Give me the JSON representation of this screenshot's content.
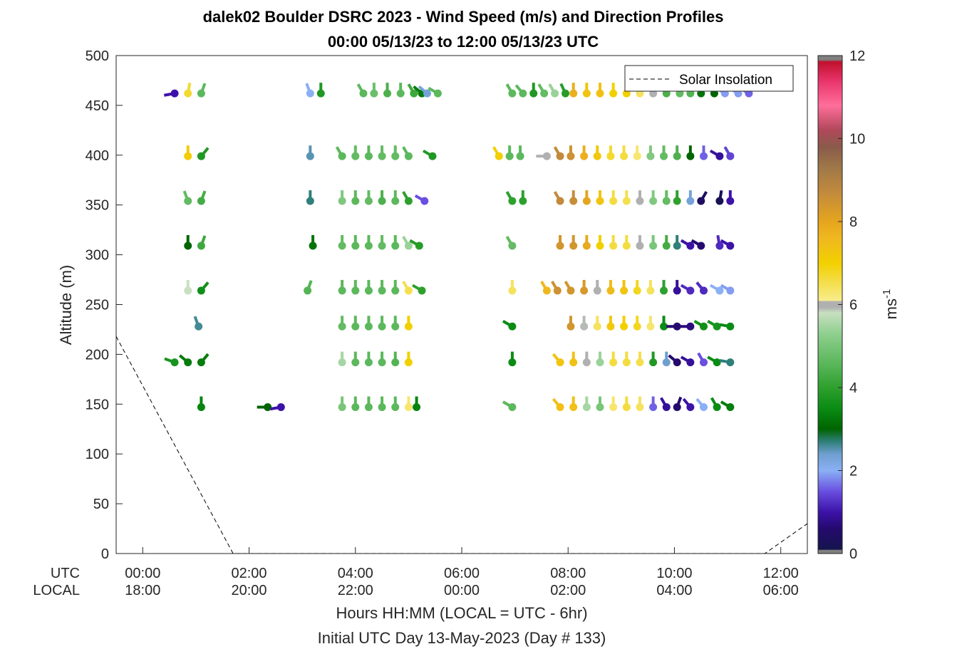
{
  "chart_data": {
    "type": "scatter",
    "title": "dalek02 Boulder DSRC 2023 - Wind Speed (m/s) and Direction Profiles",
    "subtitle": "00:00 05/13/23 to 12:00 05/13/23  UTC",
    "ylabel": "Altitude (m)",
    "xlabel": "Hours HH:MM  (LOCAL = UTC - 6hr)",
    "xlabel2": "Initial UTC Day 13-May-2023 (Day # 133)",
    "xlim": [
      -0.5,
      12.5
    ],
    "ylim": [
      0,
      500
    ],
    "x_row_labels": [
      "UTC",
      "LOCAL"
    ],
    "x_ticks": [
      {
        "hour": 0,
        "utc": "00:00",
        "local": "18:00"
      },
      {
        "hour": 2,
        "utc": "02:00",
        "local": "20:00"
      },
      {
        "hour": 4,
        "utc": "04:00",
        "local": "22:00"
      },
      {
        "hour": 6,
        "utc": "06:00",
        "local": "00:00"
      },
      {
        "hour": 8,
        "utc": "08:00",
        "local": "02:00"
      },
      {
        "hour": 10,
        "utc": "10:00",
        "local": "04:00"
      },
      {
        "hour": 12,
        "utc": "12:00",
        "local": "06:00"
      }
    ],
    "y_ticks": [
      0,
      50,
      100,
      150,
      200,
      250,
      300,
      350,
      400,
      450,
      500
    ],
    "legend": {
      "entry": "Solar Insolation",
      "location": "top-right"
    },
    "solar_insolation": [
      [
        -0.5,
        218
      ],
      [
        1.7,
        0
      ],
      [
        11.7,
        0
      ],
      [
        12.5,
        30
      ]
    ],
    "colorbar": {
      "label": "ms",
      "label_superscript": "-1",
      "min": 0,
      "max": 12,
      "ticks": [
        0,
        2,
        4,
        6,
        8,
        10,
        12
      ],
      "stops": [
        {
          "v": 0.0,
          "c": "#808080"
        },
        {
          "v": 0.08,
          "c": "#808080"
        },
        {
          "v": 0.1,
          "c": "#15154d"
        },
        {
          "v": 0.6,
          "c": "#250a6e"
        },
        {
          "v": 1.0,
          "c": "#3c12a8"
        },
        {
          "v": 1.5,
          "c": "#6a4fe0"
        },
        {
          "v": 2.0,
          "c": "#8ab0f5"
        },
        {
          "v": 2.4,
          "c": "#6e9fcf"
        },
        {
          "v": 2.7,
          "c": "#2f7f7a"
        },
        {
          "v": 3.0,
          "c": "#006400"
        },
        {
          "v": 3.5,
          "c": "#0a8c14"
        },
        {
          "v": 4.0,
          "c": "#2ea02e"
        },
        {
          "v": 4.6,
          "c": "#5cb85c"
        },
        {
          "v": 5.3,
          "c": "#8fcf8f"
        },
        {
          "v": 5.8,
          "c": "#c8e0c0"
        },
        {
          "v": 5.93,
          "c": "#b0b0b0"
        },
        {
          "v": 6.07,
          "c": "#b0b0b0"
        },
        {
          "v": 6.1,
          "c": "#f8ec8c"
        },
        {
          "v": 6.6,
          "c": "#f3dc40"
        },
        {
          "v": 7.0,
          "c": "#f2d000"
        },
        {
          "v": 7.6,
          "c": "#f0b820"
        },
        {
          "v": 8.0,
          "c": "#e5a51e"
        },
        {
          "v": 8.7,
          "c": "#c28a3c"
        },
        {
          "v": 9.3,
          "c": "#9e7848"
        },
        {
          "v": 9.8,
          "c": "#8a5a4a"
        },
        {
          "v": 10.2,
          "c": "#b0485a"
        },
        {
          "v": 10.8,
          "c": "#ff6e9a"
        },
        {
          "v": 11.4,
          "c": "#e8336a"
        },
        {
          "v": 11.85,
          "c": "#c0102c"
        },
        {
          "v": 11.9,
          "c": "#808080"
        },
        {
          "v": 12.0,
          "c": "#808080"
        }
      ]
    },
    "series": [
      {
        "alt": 462,
        "points": [
          [
            0.6,
            1.0,
            260
          ],
          [
            0.85,
            6.7,
            10
          ],
          [
            1.1,
            4.6,
            20
          ],
          [
            3.15,
            2.0,
            340
          ],
          [
            3.35,
            3.8,
            0
          ],
          [
            4.15,
            4.6,
            330
          ],
          [
            4.35,
            4.8,
            0
          ],
          [
            4.6,
            4.4,
            0
          ],
          [
            4.85,
            4.6,
            0
          ],
          [
            5.1,
            4.2,
            330
          ],
          [
            5.25,
            3.3,
            310
          ],
          [
            5.35,
            2.3,
            310
          ],
          [
            5.55,
            4.6,
            300
          ],
          [
            6.95,
            4.6,
            330
          ],
          [
            7.15,
            4.6,
            320
          ],
          [
            7.35,
            3.8,
            0
          ],
          [
            7.55,
            4.7,
            330
          ],
          [
            7.75,
            5.4,
            330
          ],
          [
            7.95,
            3.9,
            335
          ],
          [
            8.1,
            7.8,
            0
          ],
          [
            8.35,
            7.3,
            0
          ],
          [
            8.6,
            7.4,
            0
          ],
          [
            8.85,
            7.0,
            0
          ],
          [
            9.1,
            7.0,
            0
          ],
          [
            9.35,
            6.4,
            0
          ],
          [
            9.6,
            6.0,
            0
          ],
          [
            9.85,
            4.4,
            0
          ],
          [
            10.1,
            4.7,
            0
          ],
          [
            10.3,
            4.5,
            0
          ],
          [
            10.5,
            3.2,
            0
          ],
          [
            10.75,
            3.0,
            0
          ],
          [
            10.95,
            1.9,
            300
          ],
          [
            11.2,
            1.9,
            300
          ],
          [
            11.4,
            1.6,
            300
          ]
        ]
      },
      {
        "alt": 399,
        "points": [
          [
            0.85,
            7.1,
            0
          ],
          [
            1.1,
            3.8,
            40
          ],
          [
            3.15,
            2.5,
            0
          ],
          [
            3.75,
            4.6,
            330
          ],
          [
            4.0,
            4.7,
            0
          ],
          [
            4.25,
            4.6,
            0
          ],
          [
            4.5,
            4.7,
            0
          ],
          [
            4.75,
            4.7,
            0
          ],
          [
            5.0,
            4.6,
            330
          ],
          [
            5.45,
            3.8,
            300
          ],
          [
            6.7,
            7.0,
            330
          ],
          [
            6.9,
            4.6,
            0
          ],
          [
            7.1,
            4.6,
            0
          ],
          [
            7.6,
            6.0,
            270
          ],
          [
            7.85,
            8.7,
            330
          ],
          [
            8.05,
            8.5,
            0
          ],
          [
            8.3,
            7.8,
            0
          ],
          [
            8.55,
            7.2,
            0
          ],
          [
            8.8,
            6.7,
            0
          ],
          [
            9.05,
            6.6,
            0
          ],
          [
            9.3,
            6.3,
            0
          ],
          [
            9.55,
            5.1,
            0
          ],
          [
            9.8,
            4.7,
            0
          ],
          [
            10.05,
            4.4,
            0
          ],
          [
            10.3,
            3.0,
            0
          ],
          [
            10.55,
            1.6,
            0
          ],
          [
            10.85,
            0.9,
            300
          ],
          [
            11.05,
            1.4,
            330
          ]
        ]
      },
      {
        "alt": 354,
        "points": [
          [
            0.85,
            4.7,
            340
          ],
          [
            1.1,
            4.3,
            20
          ],
          [
            3.15,
            2.7,
            0
          ],
          [
            3.75,
            5.1,
            0
          ],
          [
            4.0,
            4.6,
            0
          ],
          [
            4.25,
            4.7,
            0
          ],
          [
            4.5,
            4.4,
            0
          ],
          [
            4.75,
            4.6,
            0
          ],
          [
            5.0,
            4.0,
            330
          ],
          [
            5.3,
            1.5,
            300
          ],
          [
            6.95,
            4.0,
            330
          ],
          [
            7.15,
            4.0,
            0
          ],
          [
            7.85,
            8.7,
            330
          ],
          [
            8.1,
            8.6,
            0
          ],
          [
            8.35,
            8.0,
            0
          ],
          [
            8.6,
            7.3,
            0
          ],
          [
            8.85,
            6.6,
            0
          ],
          [
            9.1,
            6.5,
            0
          ],
          [
            9.35,
            6.0,
            0
          ],
          [
            9.6,
            5.1,
            0
          ],
          [
            9.85,
            4.7,
            0
          ],
          [
            10.05,
            4.0,
            0
          ],
          [
            10.3,
            2.3,
            0
          ],
          [
            10.5,
            0.4,
            30
          ],
          [
            10.85,
            0.2,
            10
          ],
          [
            11.05,
            1.0,
            0
          ]
        ]
      },
      {
        "alt": 309,
        "points": [
          [
            0.85,
            3.0,
            0
          ],
          [
            1.1,
            4.2,
            20
          ],
          [
            3.2,
            3.2,
            0
          ],
          [
            3.75,
            4.7,
            0
          ],
          [
            4.0,
            4.6,
            0
          ],
          [
            4.25,
            4.6,
            0
          ],
          [
            4.5,
            4.7,
            0
          ],
          [
            4.75,
            4.6,
            0
          ],
          [
            5.0,
            5.4,
            330
          ],
          [
            5.2,
            3.9,
            300
          ],
          [
            6.95,
            4.7,
            330
          ],
          [
            7.85,
            8.4,
            0
          ],
          [
            8.1,
            8.4,
            0
          ],
          [
            8.35,
            7.9,
            0
          ],
          [
            8.6,
            7.0,
            0
          ],
          [
            8.85,
            6.6,
            0
          ],
          [
            9.1,
            6.6,
            0
          ],
          [
            9.35,
            6.0,
            0
          ],
          [
            9.6,
            5.0,
            0
          ],
          [
            9.85,
            4.3,
            0
          ],
          [
            10.05,
            2.7,
            0
          ],
          [
            10.3,
            1.0,
            300
          ],
          [
            10.5,
            0.6,
            300
          ],
          [
            10.85,
            1.2,
            350
          ],
          [
            11.05,
            1.0,
            300
          ]
        ]
      },
      {
        "alt": 264,
        "points": [
          [
            0.85,
            5.8,
            0
          ],
          [
            1.1,
            3.6,
            40
          ],
          [
            3.1,
            4.5,
            20
          ],
          [
            3.75,
            4.6,
            0
          ],
          [
            4.0,
            4.6,
            0
          ],
          [
            4.25,
            4.6,
            0
          ],
          [
            4.5,
            4.6,
            0
          ],
          [
            4.75,
            4.6,
            0
          ],
          [
            5.0,
            6.5,
            330
          ],
          [
            5.25,
            4.0,
            300
          ],
          [
            6.95,
            6.4,
            0
          ],
          [
            7.6,
            7.6,
            330
          ],
          [
            7.8,
            8.5,
            330
          ],
          [
            8.05,
            8.4,
            330
          ],
          [
            8.3,
            8.3,
            0
          ],
          [
            8.55,
            6.0,
            0
          ],
          [
            8.8,
            7.5,
            0
          ],
          [
            9.05,
            7.3,
            0
          ],
          [
            9.3,
            6.8,
            0
          ],
          [
            9.55,
            6.4,
            0
          ],
          [
            9.8,
            4.0,
            0
          ],
          [
            10.05,
            0.9,
            0
          ],
          [
            10.3,
            1.2,
            300
          ],
          [
            10.55,
            1.2,
            320
          ],
          [
            10.85,
            2.0,
            300
          ],
          [
            11.05,
            1.9,
            300
          ]
        ]
      },
      {
        "alt": 228,
        "points": [
          [
            1.05,
            2.6,
            340
          ],
          [
            3.75,
            4.7,
            0
          ],
          [
            4.0,
            4.6,
            0
          ],
          [
            4.25,
            4.6,
            0
          ],
          [
            4.5,
            4.6,
            0
          ],
          [
            4.75,
            4.6,
            0
          ],
          [
            5.0,
            7.0,
            0
          ],
          [
            6.95,
            3.5,
            300
          ],
          [
            8.05,
            8.4,
            0
          ],
          [
            8.3,
            5.9,
            0
          ],
          [
            8.55,
            6.4,
            0
          ],
          [
            8.8,
            7.2,
            0
          ],
          [
            9.05,
            7.0,
            0
          ],
          [
            9.3,
            6.8,
            0
          ],
          [
            9.55,
            6.3,
            0
          ],
          [
            9.8,
            3.5,
            0
          ],
          [
            10.05,
            0.6,
            270
          ],
          [
            10.3,
            0.7,
            270
          ],
          [
            10.55,
            3.6,
            300
          ],
          [
            10.8,
            3.7,
            300
          ],
          [
            11.05,
            3.5,
            280
          ]
        ]
      },
      {
        "alt": 192,
        "points": [
          [
            0.6,
            3.7,
            290
          ],
          [
            0.85,
            3.3,
            310
          ],
          [
            1.1,
            3.3,
            40
          ],
          [
            3.75,
            5.5,
            0
          ],
          [
            4.0,
            4.6,
            0
          ],
          [
            4.25,
            4.6,
            0
          ],
          [
            4.5,
            4.6,
            0
          ],
          [
            4.75,
            4.5,
            0
          ],
          [
            5.0,
            7.0,
            0
          ],
          [
            6.95,
            3.5,
            0
          ],
          [
            7.85,
            7.3,
            320
          ],
          [
            8.1,
            7.4,
            0
          ],
          [
            8.35,
            6.0,
            0
          ],
          [
            8.6,
            5.4,
            0
          ],
          [
            8.85,
            6.6,
            0
          ],
          [
            9.1,
            6.6,
            0
          ],
          [
            9.35,
            6.5,
            0
          ],
          [
            9.6,
            3.8,
            0
          ],
          [
            9.85,
            2.4,
            0
          ],
          [
            10.05,
            0.6,
            310
          ],
          [
            10.3,
            0.9,
            300
          ],
          [
            10.55,
            1.5,
            330
          ],
          [
            10.8,
            3.5,
            300
          ],
          [
            11.05,
            2.7,
            280
          ]
        ]
      },
      {
        "alt": 147,
        "points": [
          [
            1.1,
            3.4,
            0
          ],
          [
            2.35,
            3.0,
            270
          ],
          [
            2.6,
            1.0,
            260
          ],
          [
            3.75,
            5.0,
            0
          ],
          [
            4.0,
            4.6,
            0
          ],
          [
            4.25,
            4.6,
            0
          ],
          [
            4.5,
            4.6,
            0
          ],
          [
            4.75,
            4.6,
            0
          ],
          [
            5.0,
            6.3,
            0
          ],
          [
            5.15,
            3.4,
            0
          ],
          [
            6.95,
            4.6,
            300
          ],
          [
            7.85,
            7.4,
            320
          ],
          [
            8.1,
            7.4,
            0
          ],
          [
            8.35,
            5.5,
            0
          ],
          [
            8.6,
            5.0,
            0
          ],
          [
            8.85,
            6.3,
            0
          ],
          [
            9.1,
            6.6,
            0
          ],
          [
            9.35,
            6.4,
            0
          ],
          [
            9.6,
            1.6,
            0
          ],
          [
            9.85,
            0.9,
            330
          ],
          [
            10.05,
            0.6,
            20
          ],
          [
            10.3,
            1.0,
            320
          ],
          [
            10.55,
            2.0,
            320
          ],
          [
            10.8,
            3.5,
            330
          ],
          [
            11.05,
            3.3,
            300
          ]
        ]
      }
    ]
  }
}
